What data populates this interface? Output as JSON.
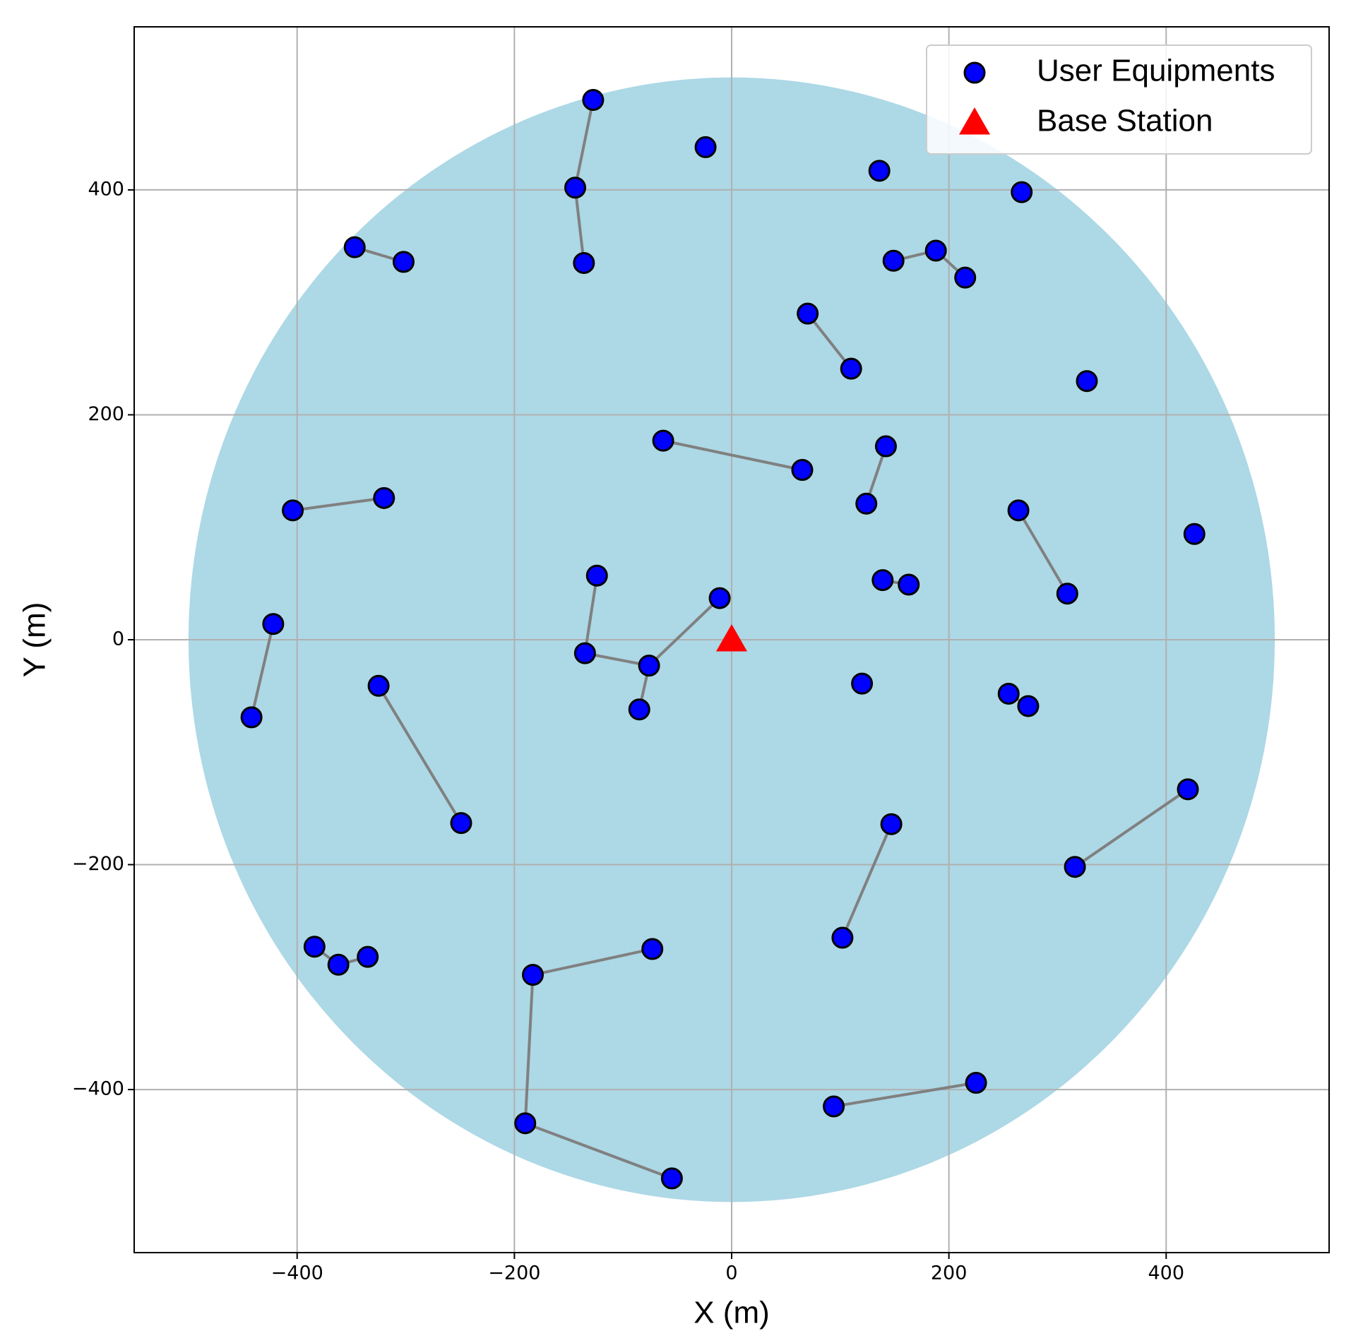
{
  "chart_data": {
    "type": "scatter",
    "xlabel": "X (m)",
    "ylabel": "Y (m)",
    "xlim": [
      -550,
      550
    ],
    "ylim": [
      -545,
      545
    ],
    "xticks": [
      {
        "value": -400,
        "label": "−400"
      },
      {
        "value": -200,
        "label": "−200"
      },
      0,
      200,
      400
    ],
    "yticks": [
      {
        "value": -400,
        "label": "−400"
      },
      {
        "value": -200,
        "label": "−200"
      },
      0,
      200,
      400
    ],
    "grid": true,
    "legend": "upper right",
    "coverage": {
      "radius": 500,
      "color": "#add8e6"
    },
    "link_color": "gray",
    "series": [
      {
        "name": "User Equipments",
        "color": "blue",
        "marker": "circle",
        "x": [
          -127.5,
          -24,
          -144,
          -136,
          136,
          267,
          -347,
          -302,
          188,
          149,
          215,
          70,
          110,
          327,
          -63,
          65,
          142,
          124,
          264,
          309,
          426,
          -404,
          -320,
          -124,
          -11,
          139,
          163,
          -422,
          -135,
          -76,
          -442,
          -325,
          -85,
          120,
          255,
          273,
          -249,
          147,
          420,
          316,
          102,
          -384,
          -362,
          -335,
          -73,
          -183,
          -190,
          -55,
          94,
          225
        ],
        "y": [
          480,
          438,
          402,
          335,
          417,
          398,
          349,
          336,
          346,
          337,
          322,
          290,
          241,
          230,
          177,
          151,
          172,
          121,
          115,
          41,
          94,
          115,
          126,
          57,
          37,
          53,
          49,
          14,
          -12,
          -23,
          -69,
          -41,
          -62,
          -39,
          -48,
          -59,
          -163,
          -164,
          -133,
          -202,
          -265,
          -273,
          -289,
          -282,
          -275,
          -298,
          -430,
          -479,
          -415,
          -394
        ]
      },
      {
        "name": "Base Station",
        "color": "red",
        "marker": "triangle",
        "x": [
          0
        ],
        "y": [
          0
        ]
      }
    ],
    "links": [
      [
        0,
        2
      ],
      [
        2,
        3
      ],
      [
        6,
        7
      ],
      [
        9,
        8
      ],
      [
        8,
        10
      ],
      [
        11,
        12
      ],
      [
        14,
        15
      ],
      [
        16,
        17
      ],
      [
        18,
        19
      ],
      [
        21,
        22
      ],
      [
        23,
        28
      ],
      [
        28,
        29
      ],
      [
        29,
        24
      ],
      [
        29,
        32
      ],
      [
        25,
        26
      ],
      [
        27,
        30
      ],
      [
        31,
        36
      ],
      [
        34,
        35
      ],
      [
        37,
        40
      ],
      [
        38,
        39
      ],
      [
        41,
        42
      ],
      [
        42,
        43
      ],
      [
        44,
        45
      ],
      [
        45,
        46
      ],
      [
        46,
        47
      ],
      [
        48,
        49
      ]
    ]
  }
}
